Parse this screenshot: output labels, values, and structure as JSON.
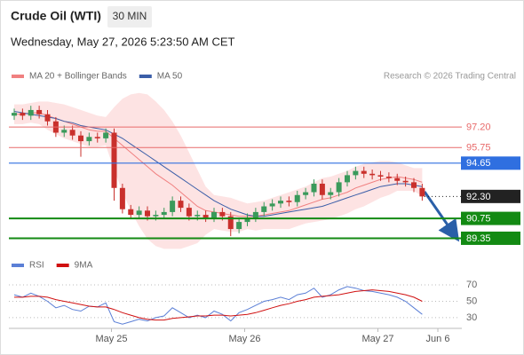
{
  "header": {
    "title": "Crude Oil (WTI)",
    "interval": "30 MIN",
    "timestamp": "Wednesday, May 27, 2026 5:23:50 AM CET"
  },
  "chart_data": [
    {
      "type": "candlestick",
      "note": "Research © 2026 Trading Central",
      "up_color": "#3a9a5b",
      "down_color": "#c9302c",
      "xlim": [
        24.23,
        27.63
      ],
      "xticks": [
        {
          "value": 25,
          "label": "May 25"
        },
        {
          "value": 26,
          "label": "May 26"
        },
        {
          "value": 27,
          "label": "May 27"
        },
        {
          "value": 27.45,
          "label": "Jun 6"
        }
      ],
      "ylim": [
        88.0,
        99.9
      ],
      "x": [
        24.27,
        24.3325,
        24.395,
        24.4575,
        24.52,
        24.5825,
        24.645,
        24.7075,
        24.77,
        24.8325,
        24.895,
        24.9575,
        25.02,
        25.0825,
        25.145,
        25.2075,
        25.27,
        25.3325,
        25.395,
        25.4575,
        25.52,
        25.5825,
        25.645,
        25.7075,
        25.77,
        25.8325,
        25.895,
        25.9575,
        26.02,
        26.0825,
        26.145,
        26.2075,
        26.27,
        26.3325,
        26.395,
        26.4575,
        26.52,
        26.5825,
        26.645,
        26.7075,
        26.77,
        26.8325,
        26.895,
        26.9575,
        27.02,
        27.0825,
        27.145,
        27.2075,
        27.27,
        27.3325
      ],
      "open": [
        98.0,
        98.2,
        98.0,
        98.4,
        98.1,
        97.6,
        96.8,
        97.0,
        96.6,
        96.2,
        96.5,
        96.4,
        96.8,
        92.9,
        91.4,
        91.0,
        91.3,
        90.9,
        91.0,
        91.2,
        92.0,
        91.5,
        90.9,
        91.0,
        90.8,
        91.2,
        90.9,
        90.0,
        90.5,
        90.8,
        91.2,
        91.6,
        91.8,
        92.0,
        91.9,
        92.4,
        92.6,
        93.2,
        92.4,
        92.6,
        93.3,
        93.8,
        94.1,
        93.9,
        93.8,
        93.7,
        93.6,
        93.4,
        93.3,
        92.9
      ],
      "high": [
        98.5,
        98.5,
        98.7,
        98.7,
        98.4,
        97.9,
        97.3,
        97.3,
        96.9,
        96.8,
        96.8,
        97.1,
        97.1,
        93.2,
        91.7,
        91.6,
        91.6,
        91.3,
        91.5,
        92.3,
        92.3,
        91.8,
        91.3,
        91.3,
        91.5,
        91.5,
        91.2,
        90.8,
        91.1,
        91.5,
        91.9,
        92.1,
        92.3,
        92.3,
        92.7,
        92.9,
        93.5,
        93.5,
        92.9,
        93.6,
        94.1,
        94.4,
        94.4,
        94.2,
        94.1,
        94.0,
        93.9,
        93.7,
        93.6,
        93.2
      ],
      "low": [
        97.7,
        97.7,
        97.7,
        97.8,
        97.3,
        96.5,
        96.5,
        96.3,
        95.1,
        95.9,
        96.1,
        96.1,
        92.0,
        91.1,
        90.7,
        90.7,
        90.6,
        90.6,
        90.7,
        90.9,
        91.2,
        90.6,
        90.6,
        90.5,
        90.5,
        90.6,
        89.5,
        89.7,
        90.2,
        90.5,
        90.9,
        91.3,
        91.5,
        91.6,
        91.6,
        92.1,
        92.3,
        92.1,
        92.1,
        92.3,
        93.0,
        93.5,
        93.6,
        93.5,
        93.4,
        93.3,
        93.1,
        93.0,
        92.6,
        92.0
      ],
      "close": [
        98.2,
        98.0,
        98.4,
        98.1,
        97.6,
        96.8,
        97.0,
        96.6,
        96.2,
        96.5,
        96.4,
        96.8,
        92.9,
        91.4,
        91.0,
        91.3,
        90.9,
        91.0,
        91.2,
        92.0,
        91.5,
        90.9,
        91.0,
        90.8,
        91.2,
        90.9,
        90.0,
        90.5,
        90.8,
        91.2,
        91.6,
        91.8,
        92.0,
        91.9,
        92.4,
        92.6,
        93.2,
        92.4,
        92.6,
        93.3,
        93.8,
        94.1,
        93.9,
        93.8,
        93.7,
        93.6,
        93.4,
        93.3,
        92.9,
        92.3
      ],
      "series": [
        {
          "name": "MA 20 + Bollinger Bands",
          "color": "#f08080",
          "band_color": "#fde3e3",
          "values": [
            98.1,
            98.1,
            98.2,
            98.2,
            98.0,
            97.8,
            97.6,
            97.4,
            97.2,
            97.0,
            96.9,
            96.9,
            96.4,
            95.9,
            95.4,
            94.9,
            94.4,
            93.9,
            93.5,
            93.1,
            92.6,
            92.1,
            91.6,
            91.3,
            91.2,
            91.1,
            91.0,
            90.9,
            90.9,
            90.9,
            91.0,
            91.1,
            91.2,
            91.3,
            91.5,
            91.7,
            91.9,
            92.1,
            92.2,
            92.4,
            92.6,
            92.9,
            93.1,
            93.3,
            93.5,
            93.6,
            93.7,
            93.6,
            93.5,
            93.3
          ],
          "upper": [
            98.8,
            98.8,
            98.9,
            99.0,
            99.0,
            98.9,
            98.8,
            98.6,
            98.4,
            98.2,
            98.0,
            97.9,
            98.6,
            99.2,
            99.5,
            99.6,
            99.5,
            99.0,
            98.4,
            97.6,
            96.6,
            95.4,
            94.2,
            93.0,
            92.4,
            92.3,
            92.2,
            92.0,
            91.8,
            91.9,
            92.0,
            92.2,
            92.4,
            92.6,
            92.8,
            93.0,
            93.3,
            93.6,
            93.7,
            93.9,
            94.1,
            94.4,
            94.6,
            94.7,
            94.8,
            94.8,
            94.7,
            94.5,
            94.3,
            94.3
          ],
          "lower": [
            97.4,
            97.4,
            97.5,
            97.4,
            97.0,
            96.7,
            96.4,
            96.2,
            96.0,
            95.8,
            95.8,
            95.9,
            94.2,
            92.6,
            91.3,
            90.2,
            89.3,
            88.8,
            88.6,
            88.6,
            88.6,
            88.8,
            89.0,
            89.6,
            90.0,
            89.9,
            89.8,
            89.8,
            90.0,
            89.9,
            90.0,
            90.0,
            90.0,
            90.0,
            90.2,
            90.4,
            90.5,
            90.6,
            90.7,
            90.9,
            91.1,
            91.4,
            91.6,
            91.9,
            92.2,
            92.4,
            92.7,
            92.7,
            92.7,
            92.3
          ]
        },
        {
          "name": "MA 50",
          "color": "#3b5ea8",
          "values": [
            98.3,
            98.2,
            98.1,
            98.0,
            97.9,
            97.8,
            97.6,
            97.5,
            97.3,
            97.2,
            97.1,
            97.0,
            96.7,
            96.4,
            96.0,
            95.6,
            95.2,
            94.8,
            94.4,
            94.0,
            93.6,
            93.2,
            92.8,
            92.4,
            92.0,
            91.7,
            91.4,
            91.2,
            91.0,
            90.9,
            90.9,
            91.0,
            91.1,
            91.2,
            91.3,
            91.4,
            91.5,
            91.6,
            91.8,
            92.0,
            92.2,
            92.4,
            92.6,
            92.8,
            93.0,
            93.1,
            93.2,
            93.2,
            93.1,
            93.0
          ]
        }
      ],
      "levels": [
        {
          "value": 97.2,
          "label": "97.20",
          "color": "#e86a6a",
          "box": false,
          "width": 1
        },
        {
          "value": 95.75,
          "label": "95.75",
          "color": "#e86a6a",
          "box": false,
          "width": 1
        },
        {
          "value": 94.65,
          "label": "94.65",
          "color": "#2f6fe0",
          "box": true,
          "width": 1.2
        },
        {
          "value": 92.3,
          "label": "92.30",
          "color": "#222222",
          "box": true,
          "width": 1,
          "dotted": true
        },
        {
          "value": 90.75,
          "label": "90.75",
          "color": "#138a13",
          "box": true,
          "width": 2
        },
        {
          "value": 89.35,
          "label": "89.35",
          "color": "#138a13",
          "box": true,
          "width": 2
        }
      ]
    },
    {
      "type": "line",
      "ylim": [
        19,
        82
      ],
      "yticks": [
        70,
        50,
        30
      ],
      "grid": true,
      "series": [
        {
          "name": "RSI",
          "color": "#5b7fd6",
          "values": [
            58,
            55,
            60,
            56,
            50,
            42,
            45,
            40,
            38,
            44,
            43,
            48,
            25,
            22,
            25,
            28,
            26,
            30,
            32,
            42,
            36,
            30,
            33,
            30,
            38,
            34,
            26,
            36,
            40,
            45,
            50,
            52,
            55,
            52,
            58,
            60,
            66,
            55,
            58,
            64,
            68,
            66,
            63,
            62,
            60,
            58,
            55,
            50,
            42,
            34
          ]
        },
        {
          "name": "9MA",
          "color": "#d01010",
          "values": [
            55,
            55,
            56,
            56,
            55,
            52,
            50,
            48,
            46,
            44,
            43,
            43,
            40,
            36,
            33,
            30,
            28,
            27,
            27,
            29,
            30,
            31,
            32,
            32,
            33,
            33,
            32,
            33,
            34,
            36,
            39,
            42,
            45,
            47,
            50,
            52,
            55,
            56,
            57,
            58,
            60,
            62,
            63,
            64,
            63,
            62,
            60,
            58,
            55,
            50
          ]
        }
      ]
    }
  ]
}
